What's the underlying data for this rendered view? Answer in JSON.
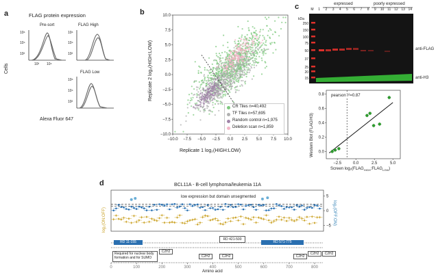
{
  "panel_a": {
    "label": "a",
    "title": "FLAG protein expression",
    "presort": "Pre-sort",
    "high": "FLAG High",
    "low": "FLAG Low",
    "ylabel": "Cells",
    "xlabel": "Alexa Fluor 647",
    "ticks": [
      "10²",
      "10⁴"
    ],
    "yticks": [
      "10⁶",
      "10⁴",
      "10²"
    ]
  },
  "panel_b": {
    "label": "b",
    "legend": [
      "CR Tiles n=40,492",
      "TF Tiles n=57,695",
      "Random control n=1,975",
      "Deletion scan n=1,859"
    ],
    "legend_colors": [
      "#7fc97f",
      "#b0b0b0",
      "#a084a8",
      "#f4b6c8"
    ]
  },
  "panel_c": {
    "label": "c",
    "expressed": "expressed",
    "poorly": "poorly expressed",
    "lanes": [
      "M",
      "1",
      "2",
      "3",
      "4",
      "5",
      "6",
      "7",
      "8",
      "9",
      "10",
      "11",
      "12",
      "13",
      "14"
    ],
    "kda_label": "kDa",
    "kda": [
      "250",
      "150",
      "100",
      "75",
      "50",
      "37",
      "25",
      "20",
      "15"
    ],
    "anti_flag": "anti-FLAG",
    "anti_h3": "anti-H3",
    "pearson": "pearson r²=0.87",
    "scatter_ylabel": "Western Blot (FLAG/H3)",
    "scatter_xlabel": "Screen log₂(FLAG",
    "scatter_xlabel_sub1": "HIGH",
    "scatter_xlabel_mid": ":FLAG",
    "scatter_xlabel_sub2": "LOW",
    "scatter_xlabel_end": ")"
  },
  "panel_d": {
    "label": "d",
    "title": "BCL11A - B-cell lymphoma/leukemia 11A",
    "annotation": "low expression but domain unsegmented",
    "ylabel_left": "log₂(ON:OFF)",
    "ylabel_right": "log₂(OFF:ON)",
    "xlabel": "Amino acid",
    "domains": {
      "rd1": "RD 11-155",
      "rd2": "RD 421-500",
      "rd3": "RD 571-775",
      "sumo_line1": "Required for nuclear body",
      "sumo_line2": "formation and for SUMO",
      "c2h2": "C2H2"
    }
  },
  "chart_data": [
    {
      "type": "line",
      "panel": "a",
      "series": [
        {
          "name": "Pre-sort"
        },
        {
          "name": "FLAG High"
        },
        {
          "name": "FLAG Low"
        }
      ],
      "xlabel": "Alexa Fluor 647",
      "ylabel": "Cells"
    },
    {
      "type": "scatter",
      "panel": "b",
      "xlabel": "Replicate 1 log₂(HIGH:LOW)",
      "ylabel": "Replicate 2 log₂(HIGH:LOW)",
      "xlim": [
        -10,
        10
      ],
      "ylim": [
        -10,
        10
      ],
      "xticks": [
        "−10.0",
        "−7.5",
        "−5.0",
        "−2.5",
        "0.0",
        "2.5",
        "5.0",
        "7.5",
        "10.0"
      ],
      "yticks": [
        "10.0",
        "7.5",
        "5.0",
        "2.5",
        "0.0",
        "−2.5",
        "−5.0",
        "−7.5",
        "−10.0"
      ],
      "series": [
        {
          "name": "CR Tiles n=40,492",
          "color": "#7fc97f"
        },
        {
          "name": "TF Tiles n=57,695",
          "color": "#b0b0b0"
        },
        {
          "name": "Random control n=1,975",
          "color": "#a084a8"
        },
        {
          "name": "Deletion scan n=1,859",
          "color": "#f4b6c8"
        }
      ]
    },
    {
      "type": "scatter",
      "panel": "c",
      "xlim": [
        -4,
        6
      ],
      "ylim": [
        -0.1,
        0.85
      ],
      "xticks": [
        "−2.5",
        "0.0",
        "2.5",
        "5.0"
      ],
      "yticks": [
        "0.0",
        "0.2",
        "0.4",
        "0.6",
        "0.8"
      ],
      "x": [
        -3.2,
        -2.8,
        -2.3,
        1.5,
        1.9,
        2.4,
        3.2,
        4.5
      ],
      "y": [
        0.0,
        0.02,
        0.04,
        0.5,
        0.53,
        0.36,
        0.38,
        0.75
      ],
      "fit_line": {
        "x": [
          -3.6,
          5.0
        ],
        "y": [
          -0.02,
          0.68
        ]
      },
      "vline_x": -1.2
    },
    {
      "type": "scatter",
      "panel": "d",
      "xlim": [
        0,
        835
      ],
      "ylim_left": [
        -7,
        7
      ],
      "xticks": [
        "0",
        "100",
        "200",
        "300",
        "400",
        "500",
        "600",
        "700",
        "800"
      ],
      "yticks_right": [
        "5",
        "0",
        "−5"
      ]
    }
  ]
}
